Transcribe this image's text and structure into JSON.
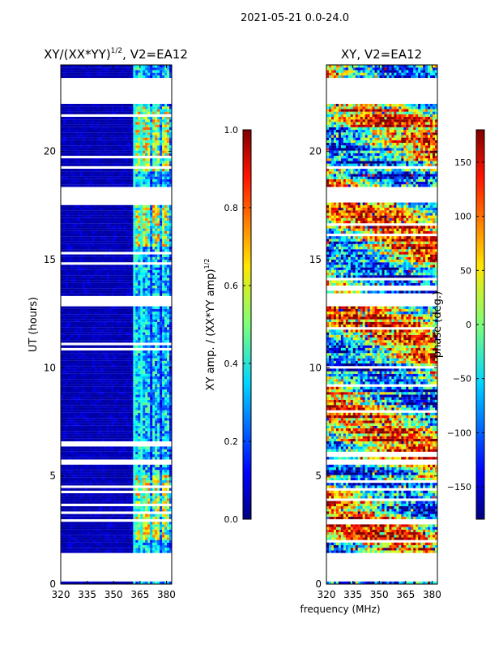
{
  "figure": {
    "suptitle": "2021-05-21 0.0-24.0"
  },
  "chart_data": [
    {
      "type": "heatmap",
      "title_base": "XY/(XX*YY)",
      "title_exp": "1/2",
      "title_tail": ", V2=EA12",
      "xlabel": "",
      "ylabel": "UT (hours)",
      "xlim": [
        320,
        383
      ],
      "ylim": [
        0,
        24
      ],
      "xticks": [
        "320",
        "335",
        "350",
        "365",
        "380"
      ],
      "xtick_values": [
        320,
        335,
        350,
        365,
        380
      ],
      "yticks": [
        "0",
        "5",
        "10",
        "15",
        "20"
      ],
      "ytick_values": [
        0,
        5,
        10,
        15,
        20
      ],
      "data_bands": [
        [
          0.0,
          0.1
        ],
        [
          1.4,
          5.5
        ],
        [
          5.7,
          12.8
        ],
        [
          13.2,
          17.6
        ],
        [
          18.3,
          22.2
        ],
        [
          23.4,
          24.0
        ]
      ],
      "colorbar": {
        "label_base": "XY amp. / (XX*YY amp)",
        "label_exp": "1/2",
        "vmin": 0.0,
        "vmax": 1.0,
        "ticks": [
          "0.0",
          "0.2",
          "0.4",
          "0.6",
          "0.8",
          "1.0"
        ],
        "tick_values": [
          0.0,
          0.2,
          0.4,
          0.6,
          0.8,
          1.0
        ]
      }
    },
    {
      "type": "heatmap",
      "title": "XY, V2=EA12",
      "xlabel": "frequency (MHz)",
      "ylabel": "",
      "xlim": [
        320,
        383
      ],
      "ylim": [
        0,
        24
      ],
      "xticks": [
        "320",
        "335",
        "350",
        "365",
        "380"
      ],
      "xtick_values": [
        320,
        335,
        350,
        365,
        380
      ],
      "yticks": [
        "0",
        "5",
        "10",
        "15",
        "20"
      ],
      "ytick_values": [
        0,
        5,
        10,
        15,
        20
      ],
      "data_bands": [
        [
          0.0,
          0.1
        ],
        [
          1.4,
          5.5
        ],
        [
          5.7,
          12.8
        ],
        [
          13.2,
          17.6
        ],
        [
          18.3,
          22.2
        ],
        [
          23.4,
          24.0
        ]
      ],
      "colorbar": {
        "label": "phase (deg.)",
        "vmin": -180,
        "vmax": 180,
        "ticks": [
          "150",
          "100",
          "50",
          "0",
          "−50",
          "−100",
          "−150"
        ],
        "tick_values": [
          150,
          100,
          50,
          0,
          -50,
          -100,
          -150
        ]
      }
    }
  ]
}
